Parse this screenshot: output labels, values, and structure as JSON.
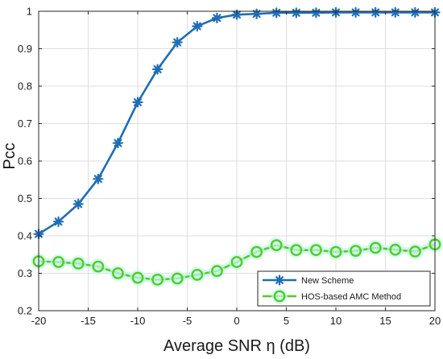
{
  "chart_data": {
    "type": "line",
    "title": "",
    "xlabel": "Average SNR η (dB)",
    "ylabel": "Pcc",
    "xlim": [
      -20,
      20
    ],
    "ylim": [
      0.2,
      1.0
    ],
    "xticks": [
      -20,
      -15,
      -10,
      -5,
      0,
      5,
      10,
      15,
      20
    ],
    "yticks": [
      0.2,
      0.3,
      0.4,
      0.5,
      0.6,
      0.7,
      0.8,
      0.9,
      1.0
    ],
    "grid": true,
    "legend_position": "bottom-right",
    "x": [
      -20,
      -18,
      -16,
      -14,
      -12,
      -10,
      -8,
      -6,
      -4,
      -2,
      0,
      2,
      4,
      6,
      8,
      10,
      12,
      14,
      16,
      18,
      20
    ],
    "series": [
      {
        "name": "New Scheme",
        "marker": "asterisk",
        "color": "#1f6db5",
        "values": [
          0.405,
          0.438,
          0.485,
          0.552,
          0.648,
          0.757,
          0.845,
          0.917,
          0.96,
          0.982,
          0.991,
          0.993,
          0.996,
          0.996,
          0.996,
          0.997,
          0.997,
          0.997,
          0.997,
          0.997,
          0.997
        ]
      },
      {
        "name": "HOS-based AMC Method",
        "marker": "circle",
        "color": "#55cc22",
        "values": [
          0.332,
          0.33,
          0.326,
          0.318,
          0.3,
          0.288,
          0.283,
          0.286,
          0.296,
          0.306,
          0.33,
          0.357,
          0.375,
          0.362,
          0.362,
          0.357,
          0.36,
          0.368,
          0.363,
          0.358,
          0.377
        ]
      }
    ]
  }
}
